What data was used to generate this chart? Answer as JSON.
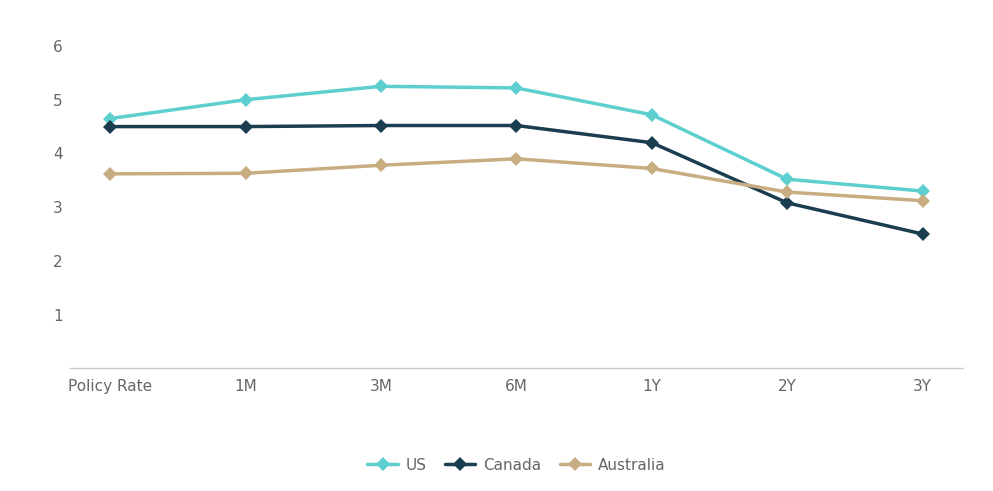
{
  "categories": [
    "Policy Rate",
    "1M",
    "3M",
    "6M",
    "1Y",
    "2Y",
    "3Y"
  ],
  "series": {
    "US": {
      "values": [
        4.65,
        5.0,
        5.25,
        5.22,
        4.72,
        3.52,
        3.3
      ],
      "color": "#5ecfcf",
      "marker": "D",
      "linewidth": 2.5
    },
    "Canada": {
      "values": [
        4.5,
        4.5,
        4.52,
        4.52,
        4.2,
        3.08,
        2.5
      ],
      "color": "#1a3d4f",
      "marker": "D",
      "linewidth": 2.5
    },
    "Australia": {
      "values": [
        3.62,
        3.63,
        3.78,
        3.9,
        3.72,
        3.28,
        3.12
      ],
      "color": "#c8ad82",
      "marker": "D",
      "linewidth": 2.5
    }
  },
  "ylim": [
    0,
    6.4
  ],
  "yticks": [
    0,
    1,
    2,
    3,
    4,
    5,
    6
  ],
  "background_color": "#ffffff",
  "legend_ncol": 3,
  "axis_color": "#cccccc",
  "tick_color": "#666666",
  "markersize": 7,
  "tick_fontsize": 11,
  "legend_fontsize": 11
}
